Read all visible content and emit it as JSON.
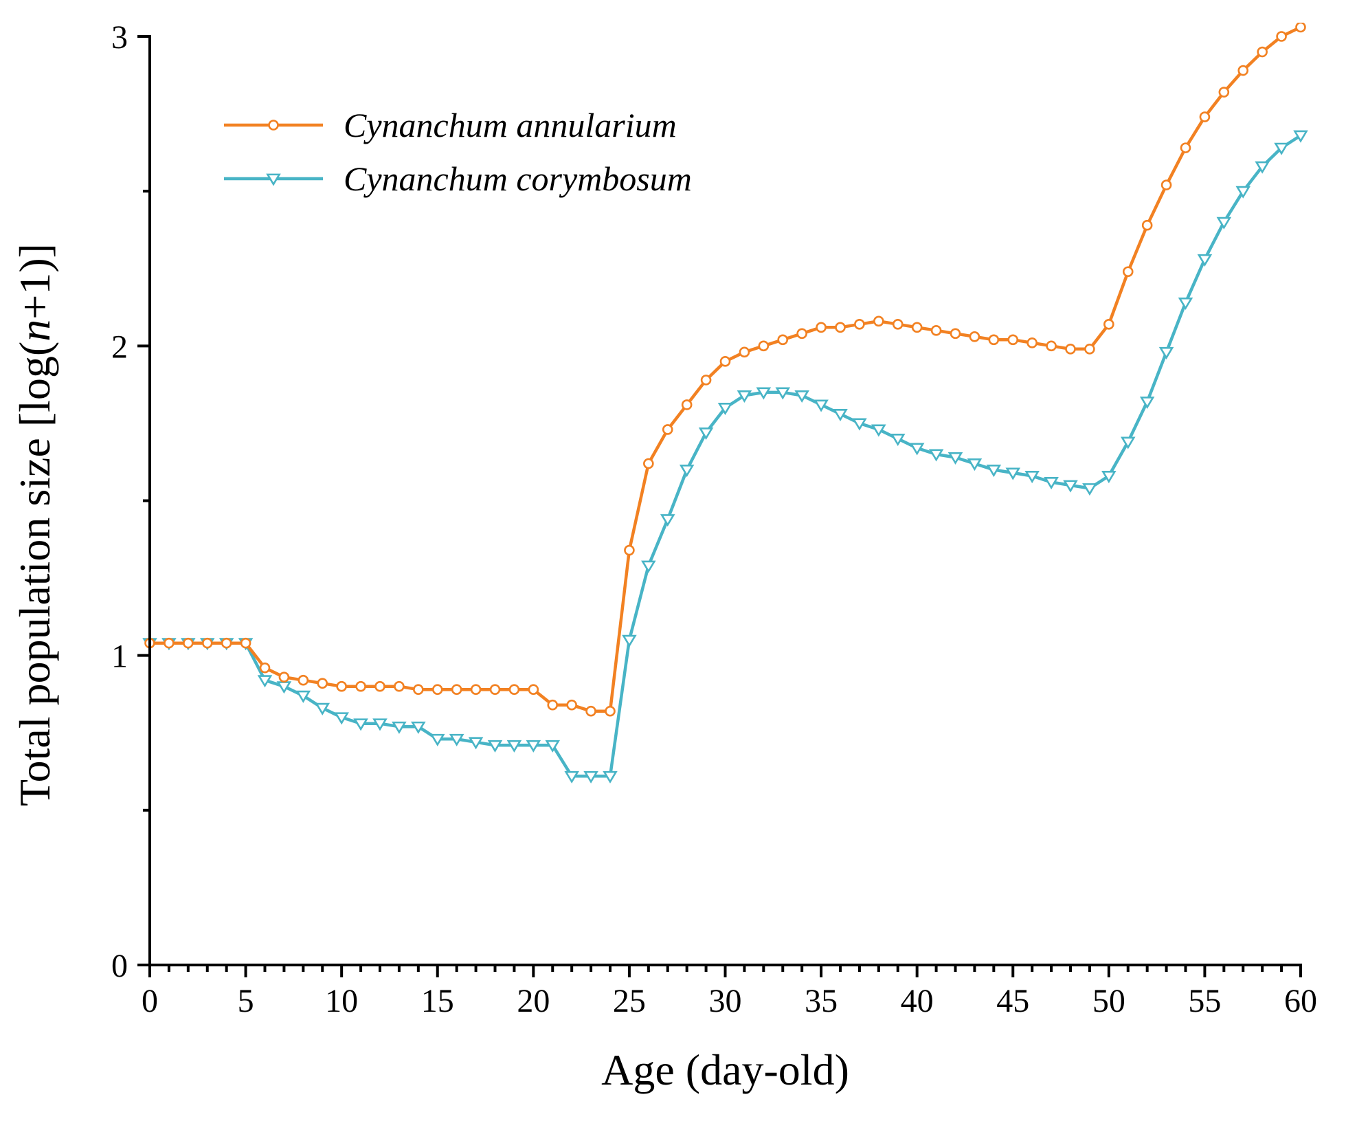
{
  "chart_data": {
    "type": "line",
    "title": "",
    "xlabel": "Age (day-old)",
    "ylabel_parts": [
      "Total population size [log(",
      "n",
      "+1)]"
    ],
    "xlim": [
      0,
      60
    ],
    "ylim": [
      0,
      3
    ],
    "x_ticks": [
      0,
      5,
      10,
      15,
      20,
      25,
      30,
      35,
      40,
      45,
      50,
      55,
      60
    ],
    "x_tick_labels": [
      "0",
      "5",
      "10",
      "15",
      "20",
      "25",
      "30",
      "35",
      "40",
      "45",
      "50",
      "55",
      "60"
    ],
    "x_minor_step": 1,
    "y_ticks": [
      0,
      1,
      2,
      3
    ],
    "y_tick_labels": [
      "0",
      "1",
      "2",
      "3"
    ],
    "y_minor_step": 0.5,
    "grid": false,
    "legend_position": "top-left",
    "x": [
      0,
      1,
      2,
      3,
      4,
      5,
      6,
      7,
      8,
      9,
      10,
      11,
      12,
      13,
      14,
      15,
      16,
      17,
      18,
      19,
      20,
      21,
      22,
      23,
      24,
      25,
      26,
      27,
      28,
      29,
      30,
      31,
      32,
      33,
      34,
      35,
      36,
      37,
      38,
      39,
      40,
      41,
      42,
      43,
      44,
      45,
      46,
      47,
      48,
      49,
      50,
      51,
      52,
      53,
      54,
      55,
      56,
      57,
      58,
      59,
      60
    ],
    "series": [
      {
        "name": "Cynanchum annularium",
        "color": "#F28122",
        "marker": "circle",
        "values": [
          1.04,
          1.04,
          1.04,
          1.04,
          1.04,
          1.04,
          0.96,
          0.93,
          0.92,
          0.91,
          0.9,
          0.9,
          0.9,
          0.9,
          0.89,
          0.89,
          0.89,
          0.89,
          0.89,
          0.89,
          0.89,
          0.84,
          0.84,
          0.82,
          0.82,
          1.34,
          1.62,
          1.73,
          1.81,
          1.89,
          1.95,
          1.98,
          2.0,
          2.02,
          2.04,
          2.06,
          2.06,
          2.07,
          2.08,
          2.07,
          2.06,
          2.05,
          2.04,
          2.03,
          2.02,
          2.02,
          2.01,
          2.0,
          1.99,
          1.99,
          2.07,
          2.24,
          2.39,
          2.52,
          2.64,
          2.74,
          2.82,
          2.89,
          2.95,
          3.0,
          3.03
        ]
      },
      {
        "name": "Cynanchum corymbosum",
        "color": "#48B4C6",
        "marker": "triangle-down",
        "values": [
          1.04,
          1.04,
          1.04,
          1.04,
          1.04,
          1.04,
          0.92,
          0.9,
          0.87,
          0.83,
          0.8,
          0.78,
          0.78,
          0.77,
          0.77,
          0.73,
          0.73,
          0.72,
          0.71,
          0.71,
          0.71,
          0.71,
          0.61,
          0.61,
          0.61,
          1.05,
          1.29,
          1.44,
          1.6,
          1.72,
          1.8,
          1.84,
          1.85,
          1.85,
          1.84,
          1.81,
          1.78,
          1.75,
          1.73,
          1.7,
          1.67,
          1.65,
          1.64,
          1.62,
          1.6,
          1.59,
          1.58,
          1.56,
          1.55,
          1.54,
          1.58,
          1.69,
          1.82,
          1.98,
          2.14,
          2.28,
          2.4,
          2.5,
          2.58,
          2.64,
          2.68
        ]
      }
    ]
  }
}
